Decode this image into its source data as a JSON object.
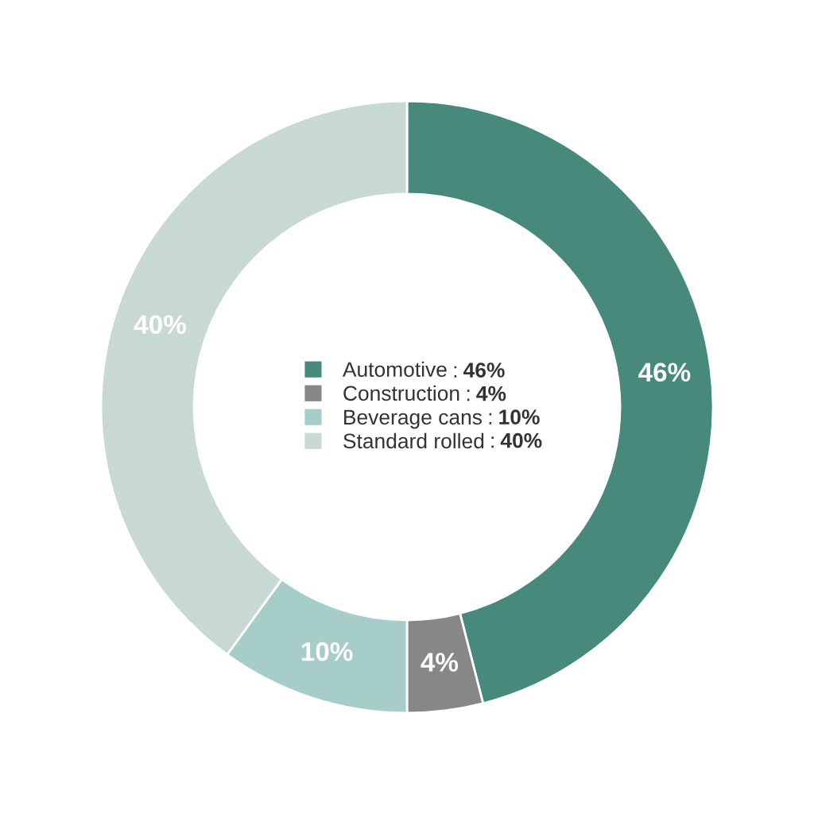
{
  "chart_data": {
    "type": "donut",
    "categories": [
      "Automotive",
      "Construction",
      "Beverage cans",
      "Standard rolled"
    ],
    "values": [
      46,
      4,
      10,
      40
    ],
    "colors": [
      "#478a7c",
      "#878787",
      "#a7cdc8",
      "#c8d9d4"
    ],
    "value_labels": [
      "46%",
      "4%",
      "10%",
      "40%"
    ],
    "annotations": [
      ":",
      ":",
      ":",
      ":"
    ],
    "legend": "center"
  }
}
